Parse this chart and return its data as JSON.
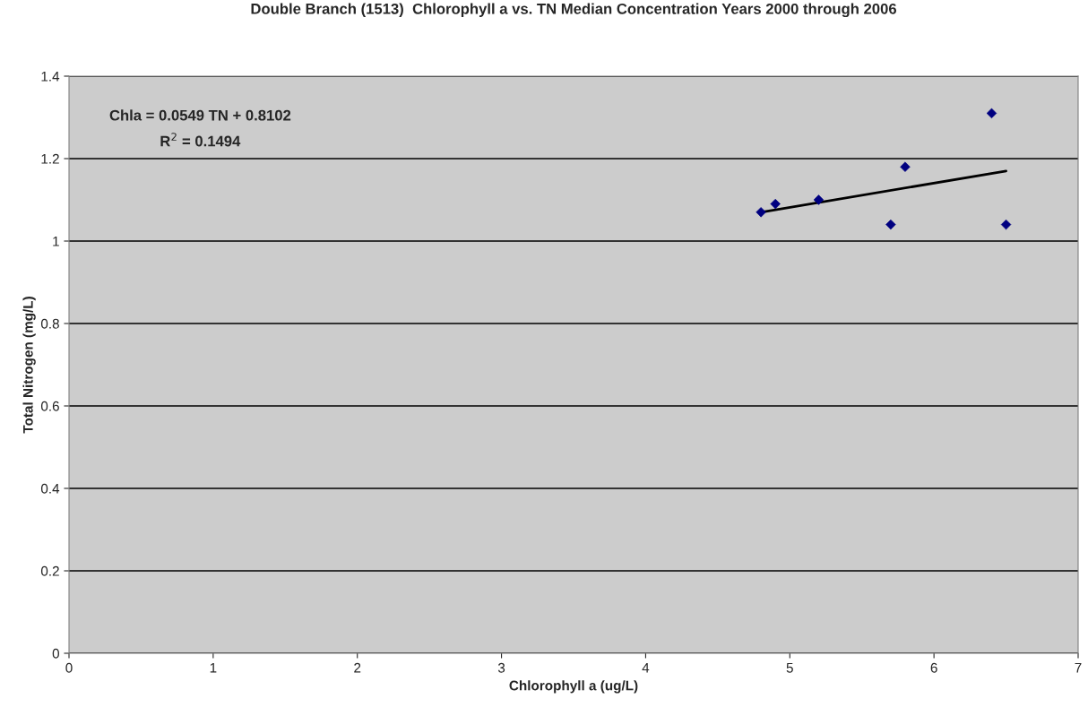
{
  "chart_data": {
    "type": "scatter",
    "title": "Double Branch (1513)  Chlorophyll a vs. TN Median Concentration Years 2000 through 2006",
    "xlabel": "Chlorophyll a (ug/L)",
    "ylabel": "Total Nitrogen (mg/L)",
    "x": [
      4.8,
      4.9,
      5.2,
      5.7,
      5.8,
      6.4,
      6.5
    ],
    "series": [
      {
        "color": "#000080",
        "marker": "diamond",
        "values": [
          1.07,
          1.09,
          1.1,
          1.04,
          1.18,
          1.31,
          1.04
        ]
      },
      {
        "type": "line",
        "color": "#000000",
        "marker": "none",
        "x": [
          4.8,
          6.5
        ],
        "values": [
          1.07,
          1.17
        ]
      }
    ],
    "annotations": [
      "Chla = 0.0549 TN + 0.8102",
      "R$^{2}$ = 0.1494"
    ],
    "xlim": [
      0,
      7
    ],
    "xticks": [
      0,
      1,
      2,
      3,
      4,
      5,
      6,
      7
    ],
    "ylim": [
      0,
      1.4
    ],
    "yticks": [
      0,
      0.2,
      0.4,
      0.6,
      0.8,
      1,
      1.2,
      1.4
    ],
    "grid": "y",
    "legend": false
  }
}
